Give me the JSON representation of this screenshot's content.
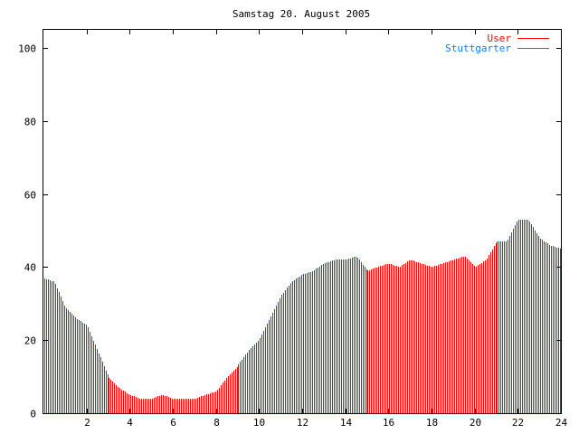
{
  "chart_data": {
    "type": "bar",
    "title": "Samstag 20. August 2005",
    "xlim": [
      0,
      24
    ],
    "ylim": [
      0,
      105
    ],
    "x_ticks": [
      2,
      4,
      6,
      8,
      10,
      12,
      14,
      16,
      18,
      20,
      22,
      24
    ],
    "y_ticks": [
      0,
      20,
      40,
      60,
      80,
      100
    ],
    "legend_position": "top-right",
    "grid": false,
    "series": [
      {
        "name": "User",
        "color": "#ff0000",
        "x": [
          0,
          0.5,
          1,
          1.5,
          2,
          2.5,
          3,
          3.5,
          4,
          4.5,
          5,
          5.5,
          6,
          6.5,
          7,
          7.5,
          8,
          8.5,
          9,
          9.5,
          10,
          10.5,
          11,
          11.5,
          12,
          12.5,
          13,
          13.5,
          14,
          14.5,
          15,
          15.5,
          16,
          16.5,
          17,
          17.5,
          18,
          18.5,
          19,
          19.5,
          20,
          20.5,
          21,
          21.5,
          22,
          22.5,
          23,
          23.5,
          24
        ],
        "values": [
          37,
          36,
          29,
          26,
          24,
          17,
          10,
          7,
          5,
          4,
          4,
          5,
          4,
          4,
          4,
          5,
          6,
          10,
          13,
          17,
          20,
          26,
          32,
          36,
          38,
          39,
          41,
          42,
          42,
          43,
          39,
          40,
          41,
          40,
          42,
          41,
          40,
          41,
          42,
          43,
          40,
          42,
          47,
          47,
          53,
          53,
          48,
          46,
          45
        ]
      },
      {
        "name": "Stuttgarter",
        "color": "#0080ff",
        "values": []
      }
    ]
  }
}
